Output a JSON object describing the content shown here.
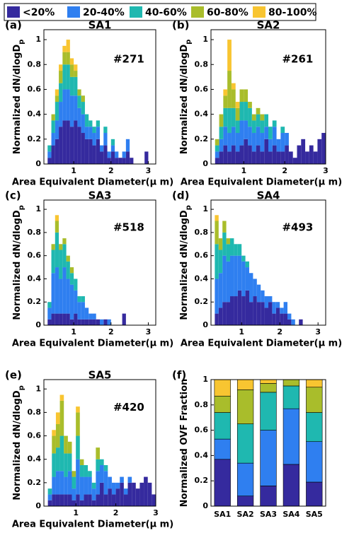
{
  "legend": {
    "labels": [
      "<20%",
      "20-40%",
      "40-60%",
      "60-80%",
      "80-100%"
    ],
    "colors": [
      "#352a9e",
      "#2f7ff0",
      "#1fb8b0",
      "#a9bd2b",
      "#f8c531"
    ]
  },
  "chart_data": [
    {
      "type": "histogram",
      "panel": "(a)",
      "title": "SA1",
      "annotation": "#271",
      "x_label": "Area Equivalent Diameter(μ m)",
      "y_label": "Normalized dN/dlogD",
      "y_label_sub": "p",
      "bins": [
        0.3,
        0.4,
        0.5,
        0.6,
        0.7,
        0.8,
        0.9,
        1.0,
        1.1,
        1.2,
        1.3,
        1.4,
        1.5,
        1.6,
        1.7,
        1.8,
        1.9,
        2.0,
        2.1,
        2.2,
        2.3,
        2.4,
        2.5,
        2.6,
        2.7,
        2.8,
        2.9,
        3.0
      ],
      "xlim": [
        0.2,
        3.2
      ],
      "xticks": [
        1,
        2,
        3
      ],
      "ylim": [
        0,
        1.08
      ],
      "yticks": [
        0,
        0.2,
        0.4,
        0.6,
        0.8,
        1
      ],
      "series": [
        {
          "values": [
            0.05,
            0.15,
            0.2,
            0.3,
            0.35,
            0.35,
            0.3,
            0.35,
            0.3,
            0.25,
            0.2,
            0.2,
            0.15,
            0.2,
            0.1,
            0.15,
            0.05,
            0.1,
            0.05,
            0.05,
            0.05,
            0.1,
            0.05,
            0,
            0,
            0,
            0.1
          ]
        },
        {
          "values": [
            0.05,
            0.1,
            0.15,
            0.2,
            0.25,
            0.25,
            0.25,
            0.2,
            0.15,
            0.15,
            0.1,
            0.1,
            0.1,
            0.1,
            0.05,
            0.1,
            0.05,
            0.05,
            0.05,
            0,
            0.05,
            0.1,
            0,
            0,
            0,
            0,
            0
          ]
        },
        {
          "values": [
            0.05,
            0.1,
            0.15,
            0.15,
            0.2,
            0.2,
            0.15,
            0.15,
            0.1,
            0.1,
            0.1,
            0.05,
            0.05,
            0.05,
            0,
            0.05,
            0,
            0.05,
            0,
            0,
            0,
            0,
            0,
            0,
            0,
            0,
            0
          ]
        },
        {
          "values": [
            0,
            0.05,
            0.05,
            0.1,
            0.1,
            0.1,
            0.1,
            0.05,
            0.05,
            0.05,
            0,
            0,
            0,
            0,
            0,
            0,
            0,
            0,
            0,
            0,
            0,
            0,
            0,
            0,
            0,
            0,
            0
          ]
        },
        {
          "values": [
            0,
            0,
            0.05,
            0.05,
            0.05,
            0.1,
            0.05,
            0.05,
            0,
            0,
            0,
            0,
            0,
            0,
            0,
            0,
            0,
            0,
            0,
            0,
            0,
            0,
            0,
            0,
            0,
            0,
            0
          ]
        }
      ]
    },
    {
      "type": "histogram",
      "panel": "(b)",
      "title": "SA2",
      "annotation": "#261",
      "x_label": "Area Equivalent Diameter(μ m)",
      "y_label": "Normalized dN/dlogD",
      "y_label_sub": "p",
      "bins": [
        0.3,
        0.4,
        0.5,
        0.6,
        0.7,
        0.8,
        0.9,
        1.0,
        1.1,
        1.2,
        1.3,
        1.4,
        1.5,
        1.6,
        1.7,
        1.8,
        1.9,
        2.0,
        2.1,
        2.2,
        2.3,
        2.4,
        2.5,
        2.6,
        2.7,
        2.8,
        2.9,
        3.0
      ],
      "xlim": [
        0.2,
        3.0
      ],
      "xticks": [
        1,
        2,
        3
      ],
      "ylim": [
        0,
        1.08
      ],
      "yticks": [
        0,
        0.2,
        0.4,
        0.6,
        0.8,
        1
      ],
      "series": [
        {
          "values": [
            0.05,
            0.1,
            0.15,
            0.1,
            0.15,
            0.1,
            0.15,
            0.2,
            0.15,
            0.1,
            0.15,
            0.1,
            0.2,
            0.1,
            0.15,
            0.1,
            0.1,
            0.15,
            0.1,
            0.05,
            0.15,
            0.2,
            0.1,
            0.15,
            0.1,
            0.2,
            0.25
          ]
        },
        {
          "values": [
            0.05,
            0.1,
            0.15,
            0.15,
            0.15,
            0.15,
            0.2,
            0.15,
            0.15,
            0.15,
            0.15,
            0.15,
            0.1,
            0.1,
            0.15,
            0.1,
            0.15,
            0.1,
            0,
            0,
            0,
            0,
            0,
            0,
            0,
            0,
            0
          ]
        },
        {
          "values": [
            0.05,
            0.1,
            0.15,
            0.2,
            0.15,
            0.1,
            0.15,
            0.15,
            0.15,
            0.1,
            0.1,
            0.1,
            0.1,
            0.1,
            0.05,
            0,
            0.05,
            0,
            0,
            0,
            0,
            0,
            0,
            0,
            0,
            0,
            0
          ]
        },
        {
          "values": [
            0.05,
            0.1,
            0.1,
            0.3,
            0.15,
            0.1,
            0.1,
            0.1,
            0.05,
            0.05,
            0.05,
            0.05,
            0,
            0,
            0,
            0,
            0,
            0,
            0,
            0,
            0,
            0,
            0,
            0,
            0,
            0,
            0
          ]
        },
        {
          "values": [
            0,
            0,
            0.05,
            0.25,
            0.05,
            0.05,
            0,
            0,
            0,
            0,
            0,
            0,
            0,
            0,
            0,
            0,
            0,
            0,
            0,
            0,
            0,
            0,
            0,
            0,
            0,
            0,
            0
          ]
        }
      ]
    },
    {
      "type": "histogram",
      "panel": "(c)",
      "title": "SA3",
      "annotation": "#518",
      "x_label": "Area Equivalent Diameter(μ m)",
      "y_label": "Normalized dN/dlogD",
      "y_label_sub": "p",
      "bins": [
        0.3,
        0.4,
        0.5,
        0.6,
        0.7,
        0.8,
        0.9,
        1.0,
        1.1,
        1.2,
        1.3,
        1.4,
        1.5,
        1.6,
        1.7,
        1.8,
        1.9,
        2.0,
        2.1,
        2.2,
        2.3,
        2.4,
        2.5,
        2.6,
        2.7,
        2.8,
        2.9,
        3.0
      ],
      "xlim": [
        0.2,
        3.2
      ],
      "xticks": [
        1,
        2,
        3
      ],
      "ylim": [
        0,
        1.08
      ],
      "yticks": [
        0,
        0.2,
        0.4,
        0.6,
        0.8,
        1
      ],
      "series": [
        {
          "values": [
            0.05,
            0.1,
            0.1,
            0.1,
            0.1,
            0.1,
            0.05,
            0.1,
            0.05,
            0.05,
            0.05,
            0.05,
            0.05,
            0.05,
            0,
            0.05,
            0,
            0,
            0,
            0,
            0.1,
            0,
            0,
            0,
            0,
            0,
            0
          ]
        },
        {
          "values": [
            0.1,
            0.35,
            0.4,
            0.3,
            0.4,
            0.3,
            0.3,
            0.2,
            0.15,
            0.15,
            0.1,
            0.05,
            0.05,
            0,
            0.05,
            0,
            0.05,
            0,
            0,
            0,
            0,
            0,
            0,
            0,
            0,
            0,
            0
          ]
        },
        {
          "values": [
            0.05,
            0.2,
            0.3,
            0.25,
            0.2,
            0.15,
            0.1,
            0.1,
            0.05,
            0.05,
            0,
            0,
            0,
            0,
            0,
            0,
            0,
            0,
            0,
            0,
            0,
            0,
            0,
            0,
            0,
            0,
            0
          ]
        },
        {
          "values": [
            0,
            0.05,
            0.1,
            0.05,
            0.05,
            0.05,
            0.05,
            0,
            0,
            0,
            0,
            0,
            0,
            0,
            0,
            0,
            0,
            0,
            0,
            0,
            0,
            0,
            0,
            0,
            0,
            0,
            0
          ]
        },
        {
          "values": [
            0,
            0,
            0.05,
            0,
            0,
            0,
            0,
            0,
            0,
            0,
            0,
            0,
            0,
            0,
            0,
            0,
            0,
            0,
            0,
            0,
            0,
            0,
            0,
            0,
            0,
            0,
            0
          ]
        }
      ]
    },
    {
      "type": "histogram",
      "panel": "(d)",
      "title": "SA4",
      "annotation": "#493",
      "x_label": "Area Equivalent Diameter(μ m)",
      "y_label": "Normalized dN/dlogD",
      "y_label_sub": "p",
      "bins": [
        0.3,
        0.4,
        0.5,
        0.6,
        0.7,
        0.8,
        0.9,
        1.0,
        1.1,
        1.2,
        1.3,
        1.4,
        1.5,
        1.6,
        1.7,
        1.8,
        1.9,
        2.0,
        2.1,
        2.2,
        2.3,
        2.4,
        2.5,
        2.6,
        2.7,
        2.8,
        2.9,
        3.0
      ],
      "xlim": [
        0.2,
        3.2
      ],
      "xticks": [
        1,
        2,
        3
      ],
      "ylim": [
        0,
        1.08
      ],
      "yticks": [
        0,
        0.2,
        0.4,
        0.6,
        0.8,
        1
      ],
      "series": [
        {
          "values": [
            0.1,
            0.15,
            0.2,
            0.2,
            0.25,
            0.25,
            0.3,
            0.25,
            0.3,
            0.2,
            0.25,
            0.2,
            0.2,
            0.15,
            0.2,
            0.1,
            0.15,
            0.1,
            0.1,
            0.05,
            0,
            0,
            0.05,
            0,
            0,
            0,
            0
          ]
        },
        {
          "values": [
            0.3,
            0.3,
            0.4,
            0.35,
            0.35,
            0.35,
            0.3,
            0.3,
            0.2,
            0.25,
            0.15,
            0.15,
            0.1,
            0.1,
            0.05,
            0.1,
            0.05,
            0.05,
            0.1,
            0.05,
            0.05,
            0,
            0,
            0,
            0,
            0,
            0
          ]
        },
        {
          "values": [
            0.3,
            0.2,
            0.2,
            0.15,
            0.15,
            0.1,
            0.1,
            0.05,
            0.05,
            0,
            0,
            0,
            0,
            0,
            0,
            0,
            0,
            0,
            0,
            0,
            0,
            0,
            0,
            0,
            0,
            0,
            0
          ]
        },
        {
          "values": [
            0.2,
            0.1,
            0.1,
            0.05,
            0,
            0,
            0,
            0,
            0,
            0,
            0,
            0,
            0,
            0,
            0,
            0,
            0,
            0,
            0,
            0,
            0,
            0,
            0,
            0,
            0,
            0,
            0
          ]
        },
        {
          "values": [
            0.05,
            0,
            0,
            0,
            0,
            0,
            0,
            0,
            0,
            0,
            0,
            0,
            0,
            0,
            0,
            0,
            0,
            0,
            0,
            0,
            0,
            0,
            0,
            0,
            0,
            0,
            0
          ]
        }
      ]
    },
    {
      "type": "histogram",
      "panel": "(e)",
      "title": "SA5",
      "annotation": "#420",
      "x_label": "Area Equivalent Diameter(μ m)",
      "y_label": "Normalized dN/dlogD",
      "y_label_sub": "p",
      "bins": [
        0.3,
        0.4,
        0.5,
        0.6,
        0.7,
        0.8,
        0.9,
        1.0,
        1.1,
        1.2,
        1.3,
        1.4,
        1.5,
        1.6,
        1.7,
        1.8,
        1.9,
        2.0,
        2.1,
        2.2,
        2.3,
        2.4,
        2.5,
        2.6,
        2.7,
        2.8,
        2.9,
        3.0
      ],
      "xlim": [
        0.2,
        3.0
      ],
      "xticks": [
        1,
        2,
        3
      ],
      "ylim": [
        0,
        1.08
      ],
      "yticks": [
        0,
        0.2,
        0.4,
        0.6,
        0.8,
        1
      ],
      "series": [
        {
          "values": [
            0.05,
            0.1,
            0.1,
            0.1,
            0.1,
            0.1,
            0.05,
            0.1,
            0.05,
            0.1,
            0.1,
            0.05,
            0.1,
            0.2,
            0.1,
            0.15,
            0.1,
            0.15,
            0.2,
            0.1,
            0.2,
            0.2,
            0.15,
            0.2,
            0.25,
            0.2,
            0.1
          ]
        },
        {
          "values": [
            0.05,
            0.15,
            0.2,
            0.2,
            0.15,
            0.2,
            0.1,
            0.3,
            0.2,
            0.15,
            0.15,
            0.1,
            0.2,
            0.15,
            0.2,
            0.1,
            0.1,
            0.05,
            0.05,
            0.05,
            0.05,
            0,
            0,
            0,
            0,
            0,
            0
          ]
        },
        {
          "values": [
            0.05,
            0.2,
            0.2,
            0.3,
            0.2,
            0.15,
            0.1,
            0.2,
            0.1,
            0.1,
            0.05,
            0.05,
            0.1,
            0.05,
            0.05,
            0,
            0,
            0,
            0,
            0,
            0,
            0,
            0,
            0,
            0,
            0,
            0
          ]
        },
        {
          "values": [
            0,
            0.15,
            0.2,
            0.3,
            0.15,
            0.1,
            0.05,
            0.2,
            0.05,
            0,
            0,
            0,
            0.1,
            0,
            0,
            0,
            0,
            0,
            0,
            0,
            0,
            0,
            0,
            0,
            0,
            0,
            0
          ]
        },
        {
          "values": [
            0,
            0.05,
            0.1,
            0.05,
            0,
            0,
            0,
            0.05,
            0,
            0,
            0,
            0,
            0,
            0,
            0,
            0,
            0,
            0,
            0,
            0,
            0,
            0,
            0,
            0,
            0,
            0,
            0
          ]
        }
      ]
    },
    {
      "type": "stacked_bar",
      "panel": "(f)",
      "y_label": "Normalized OVF Fraction",
      "categories": [
        "SA1",
        "SA2",
        "SA3",
        "SA4",
        "SA5"
      ],
      "ylim": [
        0,
        1
      ],
      "yticks": [
        0,
        0.2,
        0.4,
        0.6,
        0.8,
        1
      ],
      "series": [
        {
          "values": [
            0.37,
            0.08,
            0.16,
            0.33,
            0.19
          ]
        },
        {
          "values": [
            0.16,
            0.26,
            0.44,
            0.44,
            0.32
          ]
        },
        {
          "values": [
            0.21,
            0.31,
            0.3,
            0.18,
            0.23
          ]
        },
        {
          "values": [
            0.13,
            0.27,
            0.07,
            0.05,
            0.2
          ]
        },
        {
          "values": [
            0.13,
            0.08,
            0.03,
            0,
            0.06
          ]
        }
      ]
    }
  ]
}
